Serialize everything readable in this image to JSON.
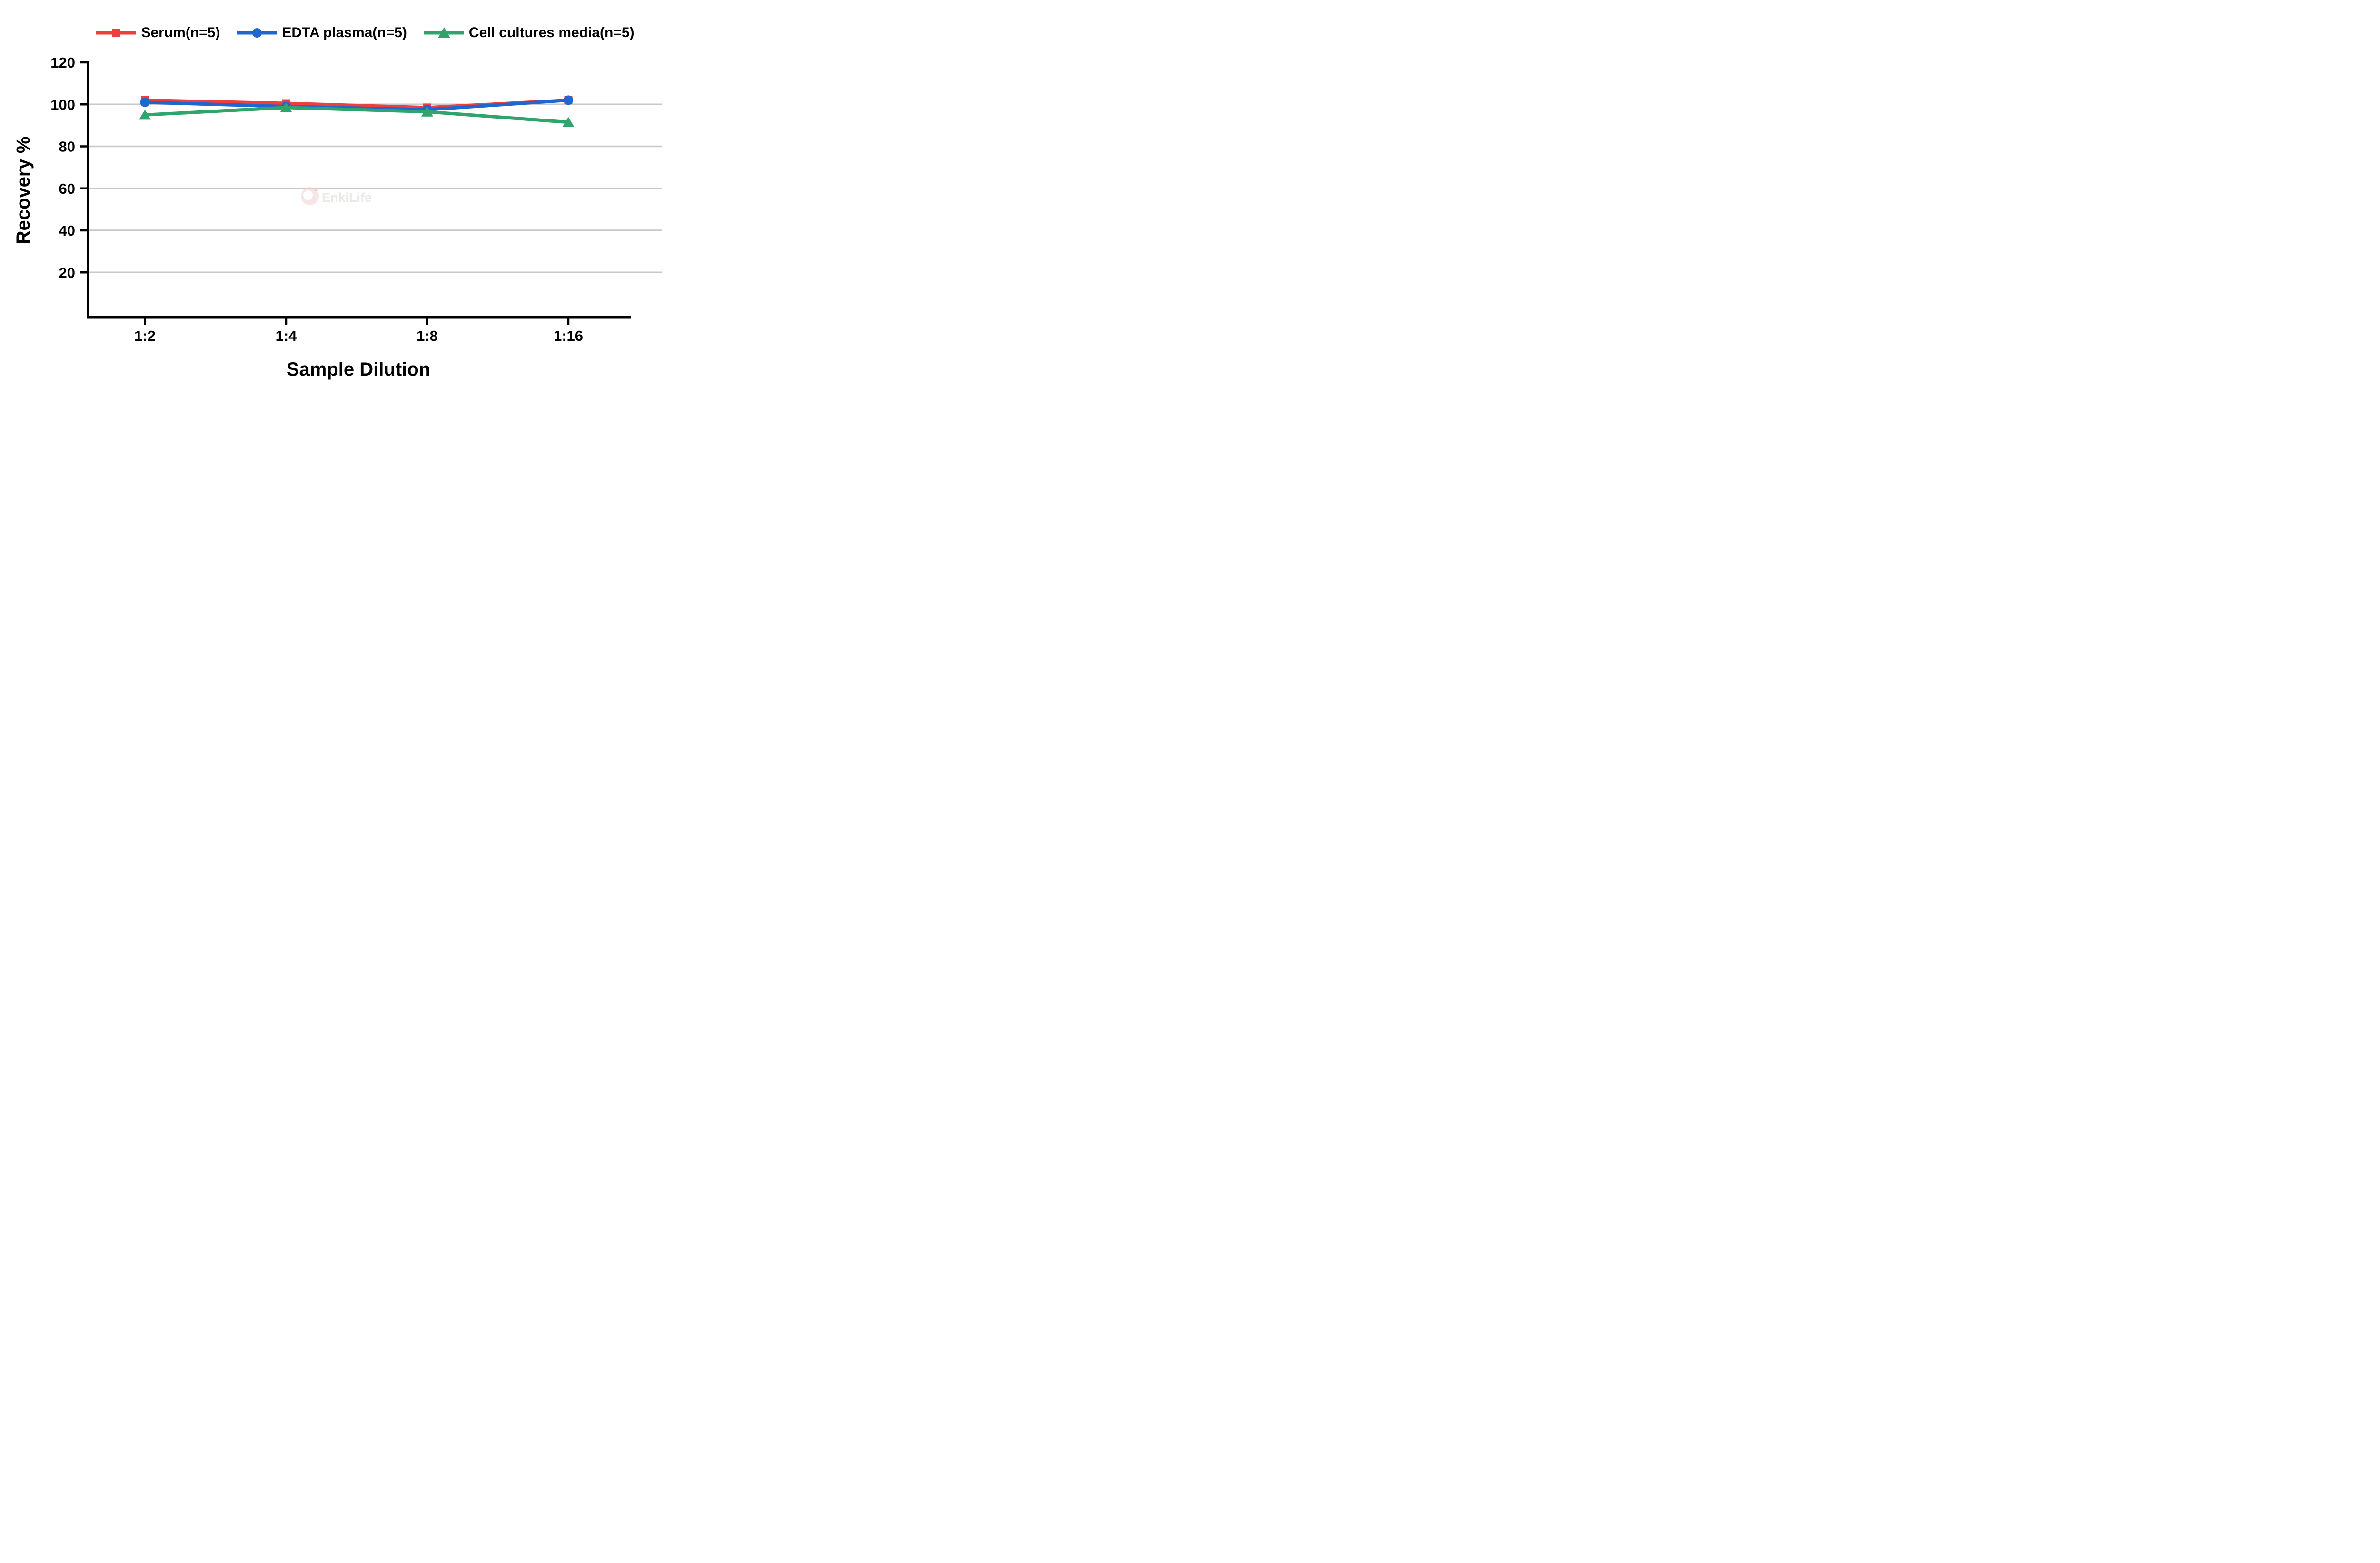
{
  "watermark": {
    "text": "EnkiLife",
    "logo_color": "#f2cfcf",
    "text_color": "#ebe8e6"
  },
  "colors": {
    "background": "#ffffff",
    "axis": "#000000",
    "gridline": "#c9c9c9",
    "tick_label": "#000000"
  },
  "chart_data": {
    "type": "line",
    "title": "",
    "xlabel": "Sample Dilution",
    "ylabel": "Recovery %",
    "categories": [
      "1:2",
      "1:4",
      "1:8",
      "1:16"
    ],
    "y_ticks": [
      20,
      40,
      60,
      80,
      100,
      120
    ],
    "gridlines": [
      20,
      40,
      60,
      80,
      100
    ],
    "ylim": [
      0,
      120
    ],
    "grid": "horizontal-only",
    "legend_position": "top-center",
    "series": [
      {
        "name": "Serum(n=5)",
        "color": "#ee3e3e",
        "marker": "square",
        "values": [
          102,
          100.5,
          98.5,
          102
        ]
      },
      {
        "name": "EDTA plasma(n=5)",
        "color": "#2066cf",
        "marker": "circle",
        "values": [
          101,
          99,
          97.5,
          102
        ]
      },
      {
        "name": "Cell cultures media(n=5)",
        "color": "#30a46c",
        "marker": "triangle",
        "values": [
          95,
          98.5,
          96.5,
          91.5
        ]
      }
    ]
  }
}
